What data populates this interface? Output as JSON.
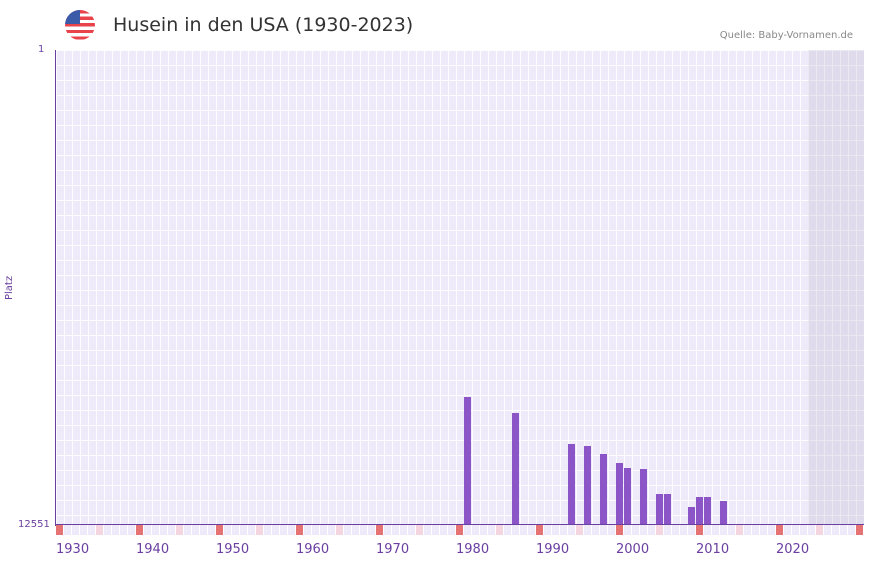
{
  "header": {
    "title": "Husein in den USA (1930-2023)",
    "source": "Quelle: Baby-Vornamen.de",
    "flag_icon": "us-flag-icon"
  },
  "colors": {
    "bar": "#8b55c7",
    "axis": "#6a3fa0",
    "marker_major": "#e57373",
    "marker_minor": "#f5d5df"
  },
  "chart_data": {
    "type": "bar",
    "title": "Husein in den USA (1930-2023)",
    "xlabel": "",
    "ylabel": "Platz",
    "ylim": [
      12551,
      1
    ],
    "y_ticks": [
      "1",
      "12551"
    ],
    "x_ticks": [
      "1930",
      "1940",
      "1950",
      "1960",
      "1970",
      "1980",
      "1990",
      "2000",
      "2010",
      "2020"
    ],
    "categories": [
      "1981",
      "1987",
      "1994",
      "1996",
      "1998",
      "2000",
      "2001",
      "2003",
      "2005",
      "2006",
      "2009",
      "2010",
      "2011",
      "2013"
    ],
    "values": [
      9172,
      9595,
      10414,
      10467,
      10678,
      10916,
      11048,
      11074,
      11735,
      11735,
      12079,
      11814,
      11814,
      11920
    ]
  },
  "axis": {
    "y_top": "1",
    "y_bottom": "12551",
    "y_title": "Platz"
  }
}
